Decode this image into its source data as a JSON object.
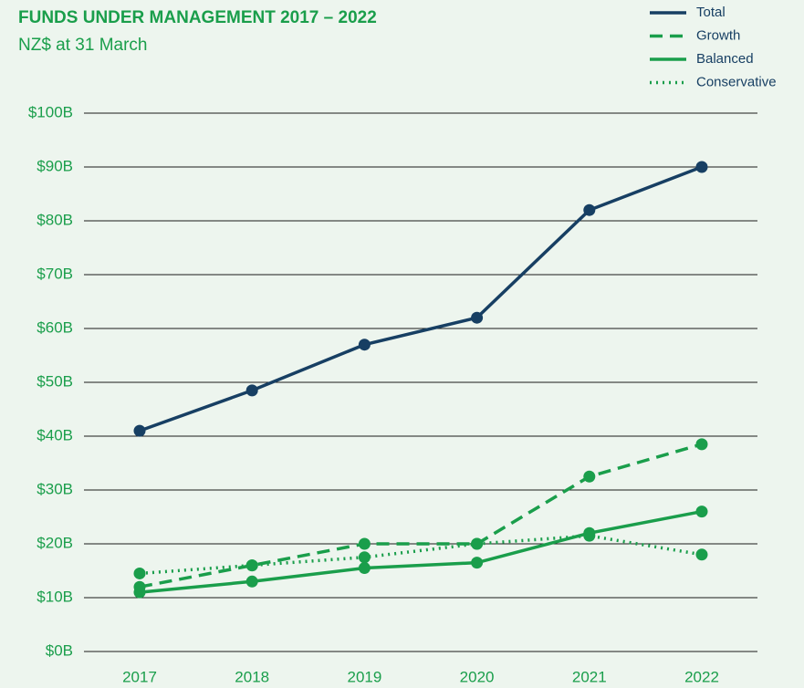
{
  "chart_data": {
    "type": "line",
    "title": "FUNDS UNDER MANAGEMENT 2017 – 2022",
    "subtitle": "NZ$ at 31 March",
    "categories": [
      "2017",
      "2018",
      "2019",
      "2020",
      "2021",
      "2022"
    ],
    "series": [
      {
        "name": "Total",
        "color": "#173f63",
        "dash": "solid",
        "values": [
          41,
          48.5,
          57,
          62,
          82,
          90
        ]
      },
      {
        "name": "Growth",
        "color": "#1a9e4b",
        "dash": "dashed",
        "values": [
          12,
          16,
          20,
          20,
          32.5,
          38.5
        ]
      },
      {
        "name": "Balanced",
        "color": "#1a9e4b",
        "dash": "solid",
        "values": [
          11,
          13,
          15.5,
          16.5,
          22,
          26
        ]
      },
      {
        "name": "Conservative",
        "color": "#1a9e4b",
        "dash": "dotted",
        "values": [
          14.5,
          16,
          17.5,
          20,
          21.5,
          18
        ]
      }
    ],
    "ylim": [
      0,
      100
    ],
    "yticks": [
      {
        "value": 0,
        "label": "$0B"
      },
      {
        "value": 10,
        "label": "$10B"
      },
      {
        "value": 20,
        "label": "$20B"
      },
      {
        "value": 30,
        "label": "$30B"
      },
      {
        "value": 40,
        "label": "$40B"
      },
      {
        "value": 50,
        "label": "$50B"
      },
      {
        "value": 60,
        "label": "$60B"
      },
      {
        "value": 70,
        "label": "$70B"
      },
      {
        "value": 80,
        "label": "$80B"
      },
      {
        "value": 90,
        "label": "$90B"
      },
      {
        "value": 100,
        "label": "$100B"
      }
    ],
    "grid": true,
    "legend": "top-right"
  }
}
